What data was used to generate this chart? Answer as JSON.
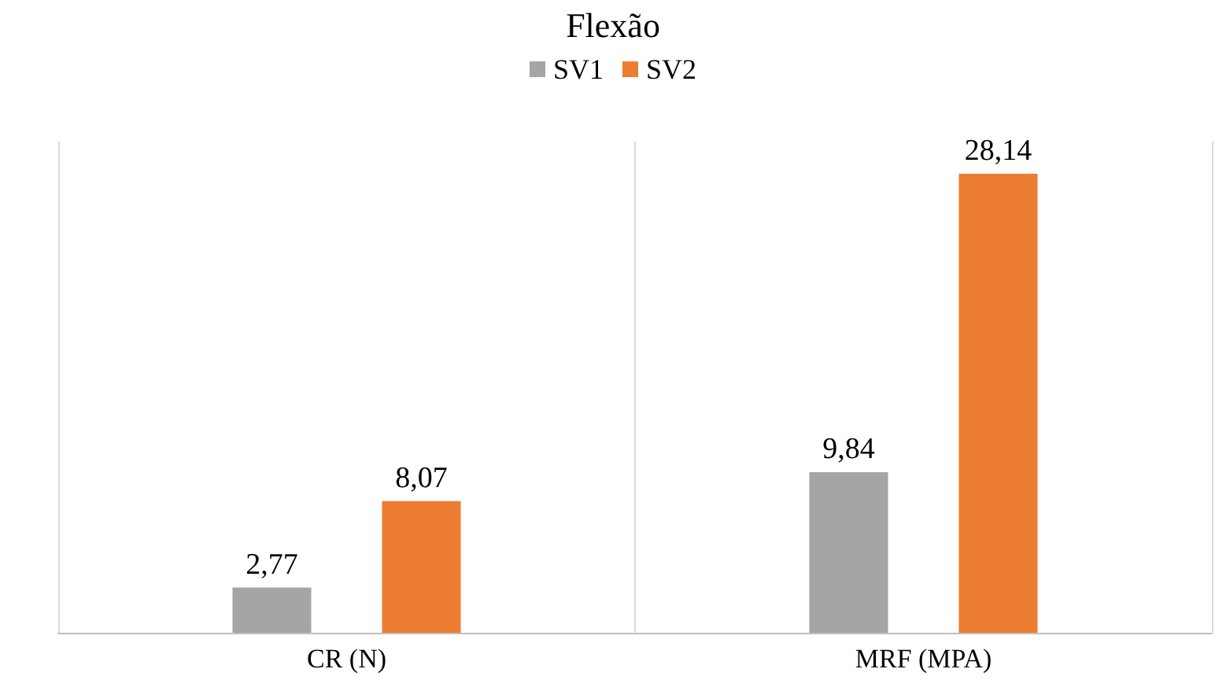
{
  "chart_data": {
    "type": "bar",
    "title": "Flexão",
    "categories": [
      "CR (N)",
      "MRF (MPA)"
    ],
    "series": [
      {
        "name": "SV1",
        "color": "#a5a5a5",
        "values": [
          2.77,
          9.84
        ],
        "value_labels": [
          "2,77",
          "9,84"
        ]
      },
      {
        "name": "SV2",
        "color": "#ed7d31",
        "values": [
          8.07,
          28.14
        ],
        "value_labels": [
          "8,07",
          "28,14"
        ]
      }
    ],
    "legend": "top",
    "grid": "x"
  }
}
